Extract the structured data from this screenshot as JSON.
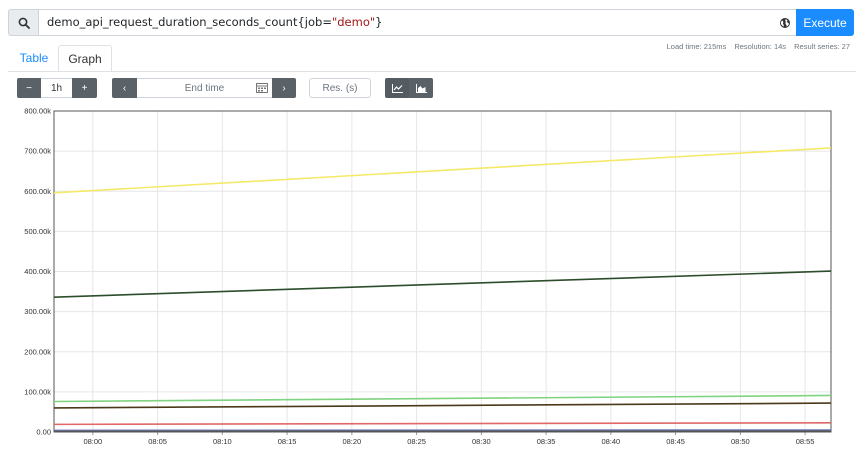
{
  "query": {
    "metric": "demo_api_request_duration_seconds_count",
    "brace_open": "{",
    "label_name": "job=",
    "label_value": "\"demo\"",
    "brace_close": "}",
    "execute_label": "Execute",
    "search_icon": "search-icon",
    "globe_icon": "globe-icon"
  },
  "tabs": {
    "table_label": "Table",
    "graph_label": "Graph"
  },
  "stats": {
    "load_time": "Load time: 215ms",
    "resolution": "Resolution: 14s",
    "result_series": "Result series: 27"
  },
  "controls": {
    "range_minus": "−",
    "range_value": "1h",
    "range_plus": "+",
    "end_prev": "‹",
    "end_time_placeholder": "End time",
    "end_next": "›",
    "res_placeholder": "Res. (s)",
    "stacked_line_icon": "line-chart-icon",
    "stacked_area_icon": "area-chart-icon"
  },
  "chart_data": {
    "type": "line",
    "x_ticks": [
      "08:00",
      "08:05",
      "08:10",
      "08:15",
      "08:20",
      "08:25",
      "08:30",
      "08:35",
      "08:40",
      "08:45",
      "08:50",
      "08:55"
    ],
    "y_ticks": [
      "800.00k",
      "700.00k",
      "600.00k",
      "500.00k",
      "400.00k",
      "300.00k",
      "200.00k",
      "100.00k",
      "0.00"
    ],
    "xlim": [
      "07:57",
      "08:57"
    ],
    "ylim": [
      0,
      800000
    ],
    "grid": true,
    "series": [
      {
        "color": "#f5e96a",
        "x": [
          "07:57",
          "08:57"
        ],
        "values": [
          596000,
          708000
        ]
      },
      {
        "color": "#2e4d2a",
        "x": [
          "07:57",
          "08:57"
        ],
        "values": [
          336000,
          401000
        ]
      },
      {
        "color": "#7fd27f",
        "x": [
          "07:57",
          "08:57"
        ],
        "values": [
          76000,
          91000
        ]
      },
      {
        "color": "#4a3a1a",
        "x": [
          "07:57",
          "08:57"
        ],
        "values": [
          60000,
          72000
        ]
      },
      {
        "color": "#e06868",
        "x": [
          "07:57",
          "08:57"
        ],
        "values": [
          19000,
          23000
        ]
      },
      {
        "color": "#6c7ab8",
        "x": [
          "07:57",
          "08:57"
        ],
        "values": [
          4000,
          5000
        ]
      },
      {
        "color": "#555555",
        "x": [
          "07:57",
          "08:57"
        ],
        "values": [
          1500,
          2000
        ]
      }
    ]
  }
}
